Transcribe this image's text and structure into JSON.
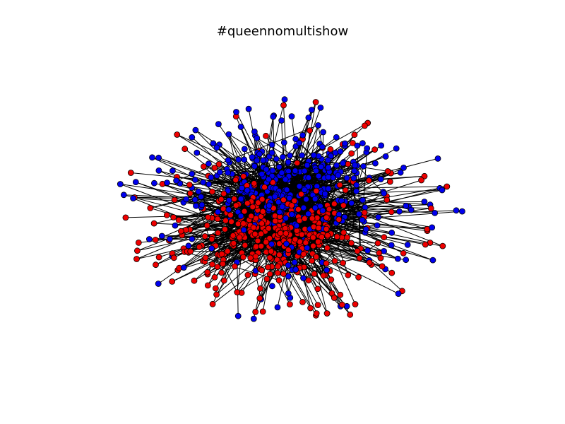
{
  "title": "#queennomultishow",
  "graph": {
    "type": "network",
    "node_colors": {
      "group_a": "#0000ee",
      "group_b": "#ee0000"
    },
    "node_outline": "#000000",
    "edge_color": "#000000",
    "background": "#ffffff",
    "layout": "force-directed"
  }
}
